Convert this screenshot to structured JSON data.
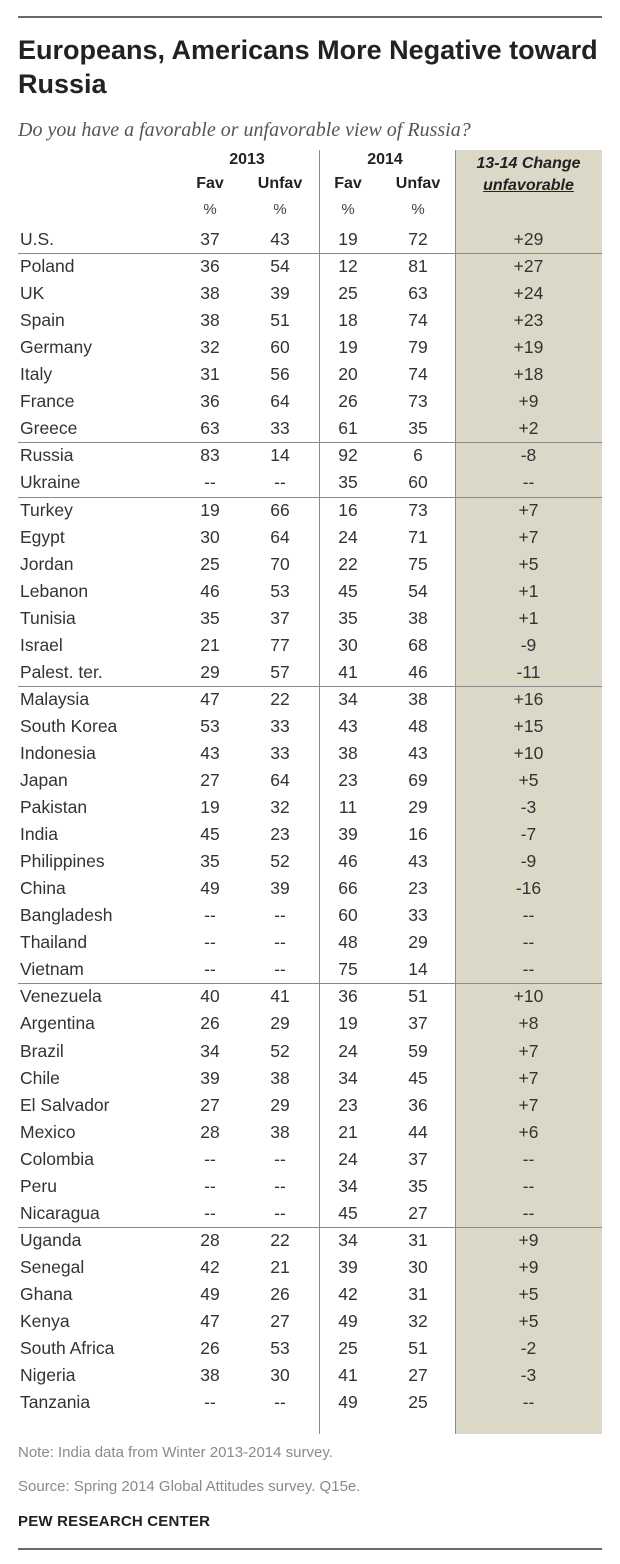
{
  "title": "Europeans, Americans More Negative toward Russia",
  "subtitle": "Do you have a favorable or unfavorable view of Russia?",
  "headers": {
    "year1": "2013",
    "year2": "2014",
    "fav": "Fav",
    "unfav": "Unfav",
    "pct": "%",
    "change_line1": "13-14 Change",
    "change_line2": "unfavorable"
  },
  "colors": {
    "change_column_shading": "#dcd8c7",
    "rule": "#8a8a8a",
    "note_text": "#8a8a8a"
  },
  "chart_data": {
    "type": "table",
    "title": "Europeans, Americans More Negative toward Russia",
    "subtitle": "Do you have a favorable or unfavorable view of Russia?",
    "columns": [
      "2013 Fav %",
      "2013 Unfav %",
      "2014 Fav %",
      "2014 Unfav %",
      "13-14 Change unfavorable"
    ],
    "groups": [
      [
        {
          "country": "U.S.",
          "fav13": "37",
          "unfav13": "43",
          "fav14": "19",
          "unfav14": "72",
          "change": "+29"
        }
      ],
      [
        {
          "country": "Poland",
          "fav13": "36",
          "unfav13": "54",
          "fav14": "12",
          "unfav14": "81",
          "change": "+27"
        },
        {
          "country": "UK",
          "fav13": "38",
          "unfav13": "39",
          "fav14": "25",
          "unfav14": "63",
          "change": "+24"
        },
        {
          "country": "Spain",
          "fav13": "38",
          "unfav13": "51",
          "fav14": "18",
          "unfav14": "74",
          "change": "+23"
        },
        {
          "country": "Germany",
          "fav13": "32",
          "unfav13": "60",
          "fav14": "19",
          "unfav14": "79",
          "change": "+19"
        },
        {
          "country": "Italy",
          "fav13": "31",
          "unfav13": "56",
          "fav14": "20",
          "unfav14": "74",
          "change": "+18"
        },
        {
          "country": "France",
          "fav13": "36",
          "unfav13": "64",
          "fav14": "26",
          "unfav14": "73",
          "change": "+9"
        },
        {
          "country": "Greece",
          "fav13": "63",
          "unfav13": "33",
          "fav14": "61",
          "unfav14": "35",
          "change": "+2"
        }
      ],
      [
        {
          "country": "Russia",
          "fav13": "83",
          "unfav13": "14",
          "fav14": "92",
          "unfav14": "6",
          "change": "-8"
        },
        {
          "country": "Ukraine",
          "fav13": "--",
          "unfav13": "--",
          "fav14": "35",
          "unfav14": "60",
          "change": "--"
        }
      ],
      [
        {
          "country": "Turkey",
          "fav13": "19",
          "unfav13": "66",
          "fav14": "16",
          "unfav14": "73",
          "change": "+7"
        },
        {
          "country": "Egypt",
          "fav13": "30",
          "unfav13": "64",
          "fav14": "24",
          "unfav14": "71",
          "change": "+7"
        },
        {
          "country": "Jordan",
          "fav13": "25",
          "unfav13": "70",
          "fav14": "22",
          "unfav14": "75",
          "change": "+5"
        },
        {
          "country": "Lebanon",
          "fav13": "46",
          "unfav13": "53",
          "fav14": "45",
          "unfav14": "54",
          "change": "+1"
        },
        {
          "country": "Tunisia",
          "fav13": "35",
          "unfav13": "37",
          "fav14": "35",
          "unfav14": "38",
          "change": "+1"
        },
        {
          "country": "Israel",
          "fav13": "21",
          "unfav13": "77",
          "fav14": "30",
          "unfav14": "68",
          "change": "-9"
        },
        {
          "country": "Palest. ter.",
          "fav13": "29",
          "unfav13": "57",
          "fav14": "41",
          "unfav14": "46",
          "change": "-11"
        }
      ],
      [
        {
          "country": "Malaysia",
          "fav13": "47",
          "unfav13": "22",
          "fav14": "34",
          "unfav14": "38",
          "change": "+16"
        },
        {
          "country": "South Korea",
          "fav13": "53",
          "unfav13": "33",
          "fav14": "43",
          "unfav14": "48",
          "change": "+15"
        },
        {
          "country": "Indonesia",
          "fav13": "43",
          "unfav13": "33",
          "fav14": "38",
          "unfav14": "43",
          "change": "+10"
        },
        {
          "country": "Japan",
          "fav13": "27",
          "unfav13": "64",
          "fav14": "23",
          "unfav14": "69",
          "change": "+5"
        },
        {
          "country": "Pakistan",
          "fav13": "19",
          "unfav13": "32",
          "fav14": "11",
          "unfav14": "29",
          "change": "-3"
        },
        {
          "country": "India",
          "fav13": "45",
          "unfav13": "23",
          "fav14": "39",
          "unfav14": "16",
          "change": "-7"
        },
        {
          "country": "Philippines",
          "fav13": "35",
          "unfav13": "52",
          "fav14": "46",
          "unfav14": "43",
          "change": "-9"
        },
        {
          "country": "China",
          "fav13": "49",
          "unfav13": "39",
          "fav14": "66",
          "unfav14": "23",
          "change": "-16"
        },
        {
          "country": "Bangladesh",
          "fav13": "--",
          "unfav13": "--",
          "fav14": "60",
          "unfav14": "33",
          "change": "--"
        },
        {
          "country": "Thailand",
          "fav13": "--",
          "unfav13": "--",
          "fav14": "48",
          "unfav14": "29",
          "change": "--"
        },
        {
          "country": "Vietnam",
          "fav13": "--",
          "unfav13": "--",
          "fav14": "75",
          "unfav14": "14",
          "change": "--"
        }
      ],
      [
        {
          "country": "Venezuela",
          "fav13": "40",
          "unfav13": "41",
          "fav14": "36",
          "unfav14": "51",
          "change": "+10"
        },
        {
          "country": "Argentina",
          "fav13": "26",
          "unfav13": "29",
          "fav14": "19",
          "unfav14": "37",
          "change": "+8"
        },
        {
          "country": "Brazil",
          "fav13": "34",
          "unfav13": "52",
          "fav14": "24",
          "unfav14": "59",
          "change": "+7"
        },
        {
          "country": "Chile",
          "fav13": "39",
          "unfav13": "38",
          "fav14": "34",
          "unfav14": "45",
          "change": "+7"
        },
        {
          "country": "El Salvador",
          "fav13": "27",
          "unfav13": "29",
          "fav14": "23",
          "unfav14": "36",
          "change": "+7"
        },
        {
          "country": "Mexico",
          "fav13": "28",
          "unfav13": "38",
          "fav14": "21",
          "unfav14": "44",
          "change": "+6"
        },
        {
          "country": "Colombia",
          "fav13": "--",
          "unfav13": "--",
          "fav14": "24",
          "unfav14": "37",
          "change": "--"
        },
        {
          "country": "Peru",
          "fav13": "--",
          "unfav13": "--",
          "fav14": "34",
          "unfav14": "35",
          "change": "--"
        },
        {
          "country": "Nicaragua",
          "fav13": "--",
          "unfav13": "--",
          "fav14": "45",
          "unfav14": "27",
          "change": "--"
        }
      ],
      [
        {
          "country": "Uganda",
          "fav13": "28",
          "unfav13": "22",
          "fav14": "34",
          "unfav14": "31",
          "change": "+9"
        },
        {
          "country": "Senegal",
          "fav13": "42",
          "unfav13": "21",
          "fav14": "39",
          "unfav14": "30",
          "change": "+9"
        },
        {
          "country": "Ghana",
          "fav13": "49",
          "unfav13": "26",
          "fav14": "42",
          "unfav14": "31",
          "change": "+5"
        },
        {
          "country": "Kenya",
          "fav13": "47",
          "unfav13": "27",
          "fav14": "49",
          "unfav14": "32",
          "change": "+5"
        },
        {
          "country": "South Africa",
          "fav13": "26",
          "unfav13": "53",
          "fav14": "25",
          "unfav14": "51",
          "change": "-2"
        },
        {
          "country": "Nigeria",
          "fav13": "38",
          "unfav13": "30",
          "fav14": "41",
          "unfav14": "27",
          "change": "-3"
        },
        {
          "country": "Tanzania",
          "fav13": "--",
          "unfav13": "--",
          "fav14": "49",
          "unfav14": "25",
          "change": "--"
        }
      ]
    ]
  },
  "footer": {
    "note": "Note: India data from Winter 2013-2014 survey.",
    "source": "Source: Spring 2014 Global Attitudes survey. Q15e.",
    "brand": "PEW RESEARCH CENTER"
  }
}
